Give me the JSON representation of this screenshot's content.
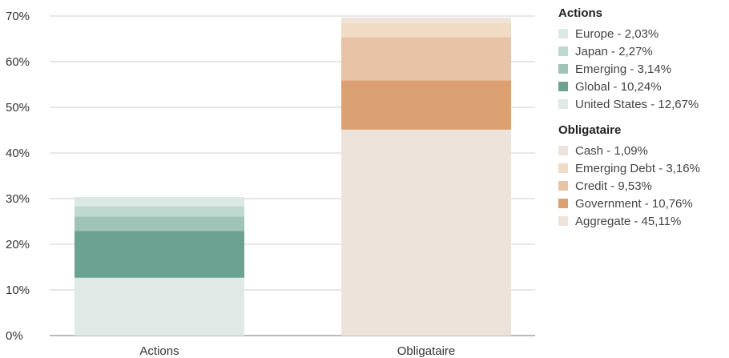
{
  "chart_data": {
    "type": "bar",
    "stacked": true,
    "categories": [
      "Actions",
      "Obligataire"
    ],
    "ylim": [
      0,
      70
    ],
    "yticks": [
      "0%",
      "10%",
      "20%",
      "30%",
      "40%",
      "50%",
      "60%",
      "70%"
    ],
    "grid": true,
    "legend_position": "right",
    "series": [
      {
        "category": "Actions",
        "name": "United States",
        "value": 12.67,
        "label": "United States - 12,67%",
        "color": "#dfe9e5"
      },
      {
        "category": "Actions",
        "name": "Global",
        "value": 10.24,
        "label": "Global - 10,24%",
        "color": "#6ca292"
      },
      {
        "category": "Actions",
        "name": "Emerging",
        "value": 3.14,
        "label": "Emerging - 3,14%",
        "color": "#9fc4b7"
      },
      {
        "category": "Actions",
        "name": "Japan",
        "value": 2.27,
        "label": "Japan - 2,27%",
        "color": "#c0d9d0"
      },
      {
        "category": "Actions",
        "name": "Europe",
        "value": 2.03,
        "label": "Europe - 2,03%",
        "color": "#dbe9e4"
      },
      {
        "category": "Obligataire",
        "name": "Aggregate",
        "value": 45.11,
        "label": "Aggregate - 45,11%",
        "color": "#ede3da"
      },
      {
        "category": "Obligataire",
        "name": "Government",
        "value": 10.76,
        "label": "Government - 10,76%",
        "color": "#dba172"
      },
      {
        "category": "Obligataire",
        "name": "Credit",
        "value": 9.53,
        "label": "Credit - 9,53%",
        "color": "#e9c3a6"
      },
      {
        "category": "Obligataire",
        "name": "Emerging Debt",
        "value": 3.16,
        "label": "Emerging Debt - 3,16%",
        "color": "#f0dcc4"
      },
      {
        "category": "Obligataire",
        "name": "Cash",
        "value": 1.09,
        "label": "Cash - 1,09%",
        "color": "#ede3da"
      }
    ]
  },
  "legend": {
    "groups": [
      {
        "title": "Actions",
        "items": [
          {
            "label": "Europe - 2,03%",
            "color": "#dbe9e4"
          },
          {
            "label": "Japan - 2,27%",
            "color": "#c0d9d0"
          },
          {
            "label": "Emerging - 3,14%",
            "color": "#9fc4b7"
          },
          {
            "label": "Global - 10,24%",
            "color": "#6ca292"
          },
          {
            "label": "United States - 12,67%",
            "color": "#dfe9e5"
          }
        ]
      },
      {
        "title": "Obligataire",
        "items": [
          {
            "label": "Cash - 1,09%",
            "color": "#ede3da"
          },
          {
            "label": "Emerging Debt - 3,16%",
            "color": "#f0dcc4"
          },
          {
            "label": "Credit - 9,53%",
            "color": "#e9c3a6"
          },
          {
            "label": "Government - 10,76%",
            "color": "#dba172"
          },
          {
            "label": "Aggregate - 45,11%",
            "color": "#ede3da"
          }
        ]
      }
    ]
  }
}
